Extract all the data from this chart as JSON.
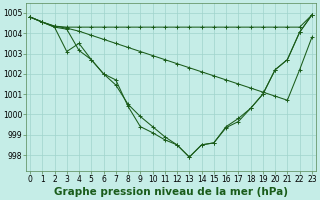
{
  "xlabel": "Graphe pression niveau de la mer (hPa)",
  "ylim": [
    997.2,
    1005.5
  ],
  "yticks": [
    998,
    999,
    1000,
    1001,
    1002,
    1003,
    1004,
    1005
  ],
  "xlim": [
    -0.3,
    23.3
  ],
  "background_color": "#c5ede7",
  "grid_color": "#a0d4cc",
  "line_color": "#1a5c1a",
  "series": [
    [
      1004.8,
      1004.55,
      1004.35,
      1004.3,
      1004.3,
      1004.3,
      1004.3,
      1004.3,
      1004.3,
      1004.3,
      1004.3,
      1004.3,
      1004.3,
      1004.3,
      1004.3,
      1004.3,
      1004.3,
      1004.3,
      1004.3,
      1004.3,
      1004.3,
      1004.3,
      1004.3,
      1004.9
    ],
    [
      1004.8,
      1004.55,
      1004.35,
      1004.25,
      1004.1,
      1003.9,
      1003.7,
      1003.5,
      1003.3,
      1003.1,
      1002.9,
      1002.7,
      1002.5,
      1002.3,
      1002.1,
      1001.9,
      1001.7,
      1001.5,
      1001.3,
      1001.1,
      1000.9,
      1000.7,
      1002.2,
      1003.8
    ],
    [
      1004.8,
      1004.55,
      1004.3,
      1003.1,
      1003.5,
      1002.7,
      1002.0,
      1001.45,
      1000.5,
      999.9,
      999.4,
      998.9,
      998.5,
      997.9,
      998.5,
      998.6,
      999.4,
      999.8,
      1000.3,
      1001.0,
      1002.2,
      1002.7,
      1004.05,
      1004.9
    ],
    [
      1004.8,
      1004.55,
      1004.3,
      1004.2,
      1003.15,
      1002.7,
      1002.0,
      1001.7,
      1000.4,
      999.4,
      999.1,
      998.75,
      998.5,
      997.9,
      998.5,
      998.6,
      999.35,
      999.65,
      1000.3,
      1001.0,
      1002.2,
      1002.7,
      1004.05,
      1004.9
    ]
  ],
  "title_fontsize": 7.5,
  "tick_fontsize": 5.5
}
